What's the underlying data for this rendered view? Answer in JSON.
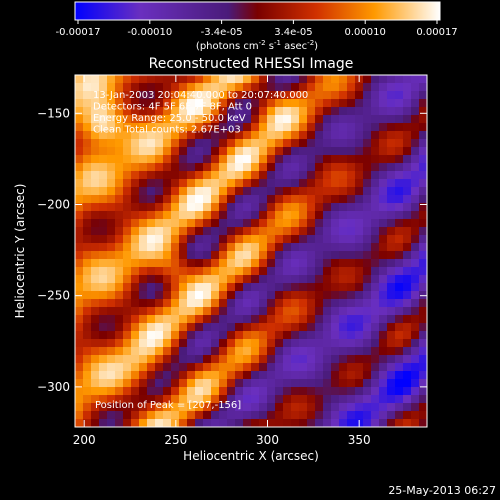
{
  "colorbar": {
    "ticks": [
      "-0.00017",
      "-0.00010",
      "-3.4e-05",
      "3.4e-05",
      "0.00010",
      "0.00017"
    ],
    "units_prefix": "(photons cm",
    "units_exp1": "-2",
    "units_mid": " s",
    "units_exp2": "-1",
    "units_mid2": " asec",
    "units_exp3": "-2",
    "units_suffix": ")",
    "colors": [
      "#0000ff",
      "#6a2fbf",
      "#4a1b7a",
      "#7a0000",
      "#d03000",
      "#ff9900",
      "#ffffff"
    ],
    "range": [
      -0.00017,
      0.00017
    ]
  },
  "chart_data": {
    "type": "heatmap",
    "title": "Reconstructed RHESSI Image",
    "xlabel": "Heliocentric X (arcsec)",
    "ylabel": "Heliocentric Y (arcsec)",
    "xlim": [
      195,
      387
    ],
    "ylim": [
      -322,
      -129
    ],
    "x_ticks": [
      200,
      250,
      300,
      350
    ],
    "y_ticks": [
      -150,
      -200,
      -250,
      -300
    ],
    "x_tick_labels": [
      "200",
      "250",
      "300",
      "350"
    ],
    "y_tick_labels": [
      "−150",
      "−200",
      "−250",
      "−300"
    ],
    "annotations": [
      "13-Jan-2003 20:04:40.000 to 20:07:40.000",
      "Detectors: 4F 5F 6F 7F 8F, Att 0",
      "Energy Range: 25.0 - 50.0 keV",
      "Clean    Total counts: 2.67E+03"
    ],
    "peak_label": "Position of Peak = [207,-156]",
    "peak": [
      207,
      -156
    ]
  },
  "footer": {
    "timestamp": "25-May-2013 06:27"
  }
}
